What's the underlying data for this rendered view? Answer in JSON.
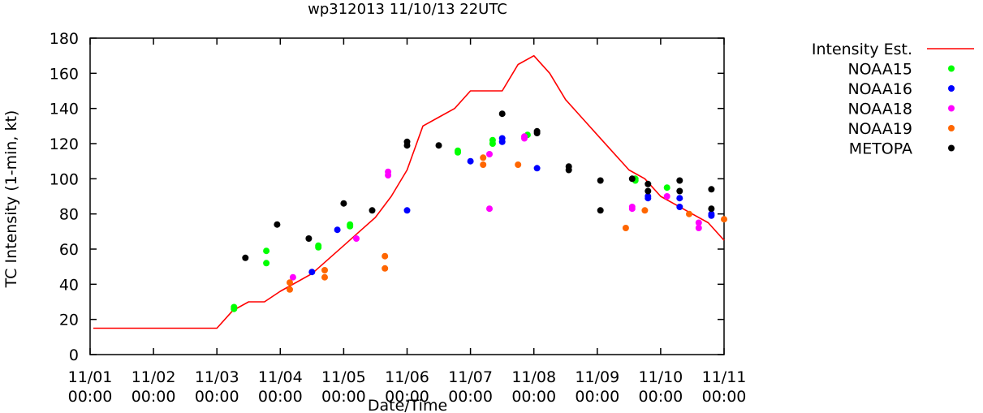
{
  "chart_data": {
    "type": "scatter",
    "title": "wp312013 11/10/13 22UTC",
    "xlabel": "Date/Time",
    "ylabel": "TC Intensity (1-min, kt)",
    "xlim": [
      0,
      10
    ],
    "ylim": [
      0,
      180
    ],
    "x_unit": "days since 11/01 00:00",
    "yticks": [
      0,
      20,
      40,
      60,
      80,
      100,
      120,
      140,
      160,
      180
    ],
    "xticks": [
      {
        "x": 0,
        "date": "11/01",
        "time": "00:00"
      },
      {
        "x": 1,
        "date": "11/02",
        "time": "00:00"
      },
      {
        "x": 2,
        "date": "11/03",
        "time": "00:00"
      },
      {
        "x": 3,
        "date": "11/04",
        "time": "00:00"
      },
      {
        "x": 4,
        "date": "11/05",
        "time": "00:00"
      },
      {
        "x": 5,
        "date": "11/06",
        "time": "00:00"
      },
      {
        "x": 6,
        "date": "11/07",
        "time": "00:00"
      },
      {
        "x": 7,
        "date": "11/08",
        "time": "00:00"
      },
      {
        "x": 8,
        "date": "11/09",
        "time": "00:00"
      },
      {
        "x": 9,
        "date": "11/10",
        "time": "00:00"
      },
      {
        "x": 10,
        "date": "11/11",
        "time": "00:00"
      }
    ],
    "legend_position": "right",
    "series": [
      {
        "name": "Intensity Est.",
        "kind": "line",
        "color": "#ff0000",
        "points": [
          [
            0.05,
            15
          ],
          [
            1,
            15
          ],
          [
            2,
            15
          ],
          [
            2.25,
            25
          ],
          [
            2.5,
            30
          ],
          [
            2.75,
            30
          ],
          [
            3,
            36
          ],
          [
            3.5,
            46
          ],
          [
            4,
            62
          ],
          [
            4.25,
            70
          ],
          [
            4.5,
            78
          ],
          [
            4.75,
            90
          ],
          [
            5,
            105
          ],
          [
            5.25,
            130
          ],
          [
            5.5,
            135
          ],
          [
            5.75,
            140
          ],
          [
            6,
            150
          ],
          [
            6.25,
            150
          ],
          [
            6.5,
            150
          ],
          [
            6.75,
            165
          ],
          [
            7,
            170
          ],
          [
            7.25,
            160
          ],
          [
            7.5,
            145
          ],
          [
            7.75,
            135
          ],
          [
            8,
            125
          ],
          [
            8.25,
            115
          ],
          [
            8.5,
            105
          ],
          [
            8.75,
            100
          ],
          [
            9,
            90
          ],
          [
            9.25,
            85
          ],
          [
            9.5,
            80
          ],
          [
            9.75,
            75
          ],
          [
            10,
            65
          ]
        ]
      },
      {
        "name": "NOAA15",
        "kind": "points",
        "color": "#00ff00",
        "points": [
          [
            2.27,
            26
          ],
          [
            2.27,
            27
          ],
          [
            2.78,
            59
          ],
          [
            2.78,
            52
          ],
          [
            3.6,
            61
          ],
          [
            3.6,
            62
          ],
          [
            4.1,
            73
          ],
          [
            4.1,
            74
          ],
          [
            5.8,
            116
          ],
          [
            5.8,
            115
          ],
          [
            6.35,
            122
          ],
          [
            6.35,
            120
          ],
          [
            6.9,
            125
          ],
          [
            8.6,
            100
          ],
          [
            8.6,
            99
          ],
          [
            9.1,
            95
          ]
        ]
      },
      {
        "name": "NOAA16",
        "kind": "points",
        "color": "#0000ff",
        "points": [
          [
            3.5,
            47
          ],
          [
            3.9,
            71
          ],
          [
            5.0,
            82
          ],
          [
            6.0,
            110
          ],
          [
            6.5,
            123
          ],
          [
            6.5,
            121
          ],
          [
            7.05,
            106
          ],
          [
            8.8,
            89
          ],
          [
            8.8,
            90
          ],
          [
            9.3,
            89
          ],
          [
            9.3,
            84
          ],
          [
            9.8,
            79
          ],
          [
            9.8,
            80
          ]
        ]
      },
      {
        "name": "NOAA18",
        "kind": "points",
        "color": "#ff00ff",
        "points": [
          [
            3.2,
            44
          ],
          [
            4.2,
            66
          ],
          [
            4.7,
            104
          ],
          [
            4.7,
            102
          ],
          [
            6.3,
            114
          ],
          [
            6.3,
            83
          ],
          [
            6.85,
            124
          ],
          [
            6.85,
            123
          ],
          [
            8.55,
            84
          ],
          [
            8.55,
            83
          ],
          [
            9.1,
            90
          ],
          [
            9.6,
            75
          ],
          [
            9.6,
            72
          ]
        ]
      },
      {
        "name": "NOAA19",
        "kind": "points",
        "color": "#ff6600",
        "points": [
          [
            3.15,
            41
          ],
          [
            3.15,
            37
          ],
          [
            3.7,
            48
          ],
          [
            3.7,
            44
          ],
          [
            4.65,
            56
          ],
          [
            4.65,
            49
          ],
          [
            6.2,
            112
          ],
          [
            6.2,
            108
          ],
          [
            6.75,
            108
          ],
          [
            8.45,
            72
          ],
          [
            8.75,
            82
          ],
          [
            9.45,
            80
          ],
          [
            10.0,
            77
          ]
        ]
      },
      {
        "name": "METOPA",
        "kind": "points",
        "color": "#000000",
        "points": [
          [
            2.45,
            55
          ],
          [
            2.95,
            74
          ],
          [
            3.45,
            66
          ],
          [
            4.0,
            86
          ],
          [
            4.45,
            82
          ],
          [
            5.0,
            121
          ],
          [
            5.0,
            119
          ],
          [
            5.5,
            119
          ],
          [
            6.5,
            137
          ],
          [
            7.05,
            127
          ],
          [
            7.05,
            126
          ],
          [
            7.55,
            107
          ],
          [
            7.55,
            105
          ],
          [
            8.05,
            99
          ],
          [
            8.05,
            82
          ],
          [
            8.55,
            100
          ],
          [
            8.8,
            97
          ],
          [
            8.8,
            93
          ],
          [
            9.3,
            99
          ],
          [
            9.3,
            93
          ],
          [
            9.8,
            94
          ],
          [
            9.8,
            83
          ]
        ]
      }
    ]
  }
}
